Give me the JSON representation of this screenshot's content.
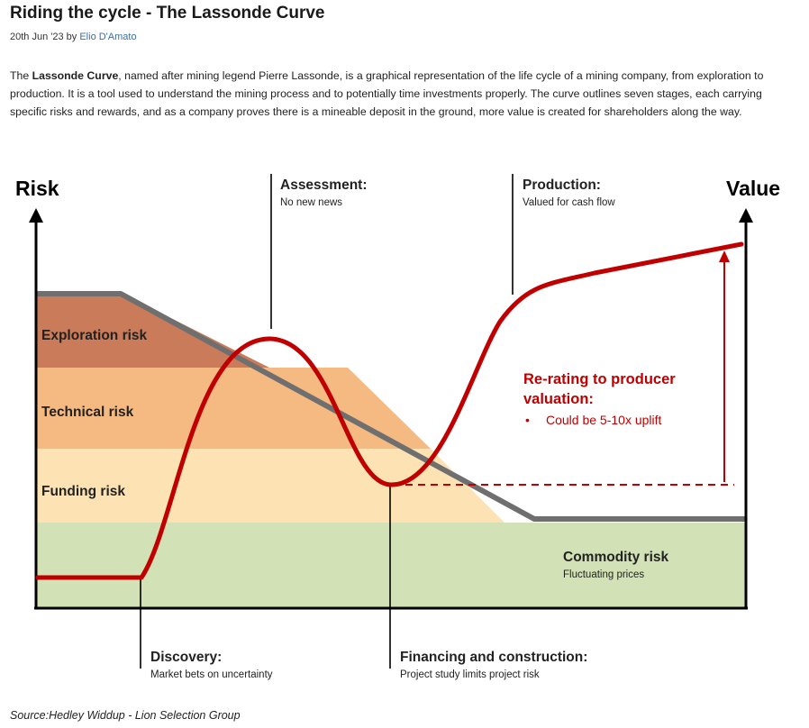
{
  "article": {
    "title": "Riding the cycle - The Lassonde Curve",
    "date": "20th Jun '23",
    "by_word": "by",
    "author": "Elio D'Amato",
    "intro_bold": "Lassonde Curve",
    "intro_pre": "The ",
    "intro_post": ", named after mining legend Pierre Lassonde, is a graphical representation of the life cycle of a mining company, from exploration to production. It is a tool used to understand the mining process and to potentially time investments properly. The curve outlines seven stages, each carrying specific risks and rewards, and as a company proves there is a mineable deposit in the ground, more value is created for shareholders along the way.",
    "source": "Source:Hedley Widdup - Lion Selection Group"
  },
  "diagram": {
    "axis_left": "Risk",
    "axis_right": "Value",
    "risk_bands": {
      "exploration": "Exploration risk",
      "technical": "Technical risk",
      "funding": "Funding risk",
      "commodity": "Commodity risk",
      "commodity_sub": "Fluctuating prices"
    },
    "stages": {
      "assessment": "Assessment:",
      "assessment_sub": "No new news",
      "production": "Production:",
      "production_sub": "Valued for cash flow",
      "discovery": "Discovery:",
      "discovery_sub": "Market bets on uncertainty",
      "financing": "Financing and construction:",
      "financing_sub": "Project study limits project risk"
    },
    "rerating": {
      "line1": "Re-rating to producer",
      "line2": "valuation:",
      "bullet": "•",
      "bullet_text": "Could be 5-10x uplift"
    },
    "colors": {
      "curve": "#c00000",
      "exploration": "#c97b5a",
      "technical": "#f5b982",
      "funding": "#fde3b3",
      "commodity": "#d3e1b6",
      "slope": "#6f6f6f"
    }
  }
}
